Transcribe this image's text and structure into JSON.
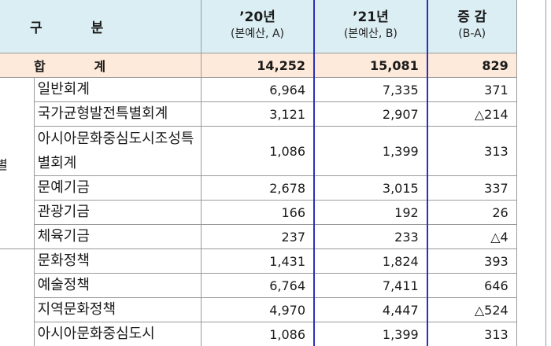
{
  "header": {
    "category": "구 분",
    "cat_part1": "구",
    "cat_part2": "분",
    "y20_title": "’20년",
    "y20_sub": "(본예산, A)",
    "y21_title": "’21년",
    "y21_sub": "(본예산, B)",
    "diff_title": "증 감",
    "diff_sub": "(B-A)"
  },
  "total": {
    "label": "합 계",
    "label_a": "합",
    "label_b": "계",
    "y20": "14,252",
    "y21": "15,081",
    "diff": "829"
  },
  "group1": {
    "label": "별"
  },
  "rows": [
    {
      "name": "일반회계",
      "y20": "6,964",
      "y21": "7,335",
      "diff": "371"
    },
    {
      "name": "국가균형발전특별회계",
      "y20": "3,121",
      "y21": "2,907",
      "diff": "△214"
    },
    {
      "name": "아시아문화중심도시조성특별회계",
      "y20": "1,086",
      "y21": "1,399",
      "diff": "313"
    },
    {
      "name": "문예기금",
      "y20": "2,678",
      "y21": "3,015",
      "diff": "337"
    },
    {
      "name": "관광기금",
      "y20": "166",
      "y21": "192",
      "diff": "26"
    },
    {
      "name": "체육기금",
      "y20": "237",
      "y21": "233",
      "diff": "△4"
    },
    {
      "name": "문화정책",
      "y20": "1,431",
      "y21": "1,824",
      "diff": "393"
    },
    {
      "name": "예술정책",
      "y20": "6,764",
      "y21": "7,411",
      "diff": "646"
    },
    {
      "name": "지역문화정책",
      "y20": "4,970",
      "y21": "4,447",
      "diff": "△524"
    },
    {
      "name": "아시아문화중심도시",
      "y20": "1,086",
      "y21": "1,399",
      "diff": "313"
    }
  ]
}
